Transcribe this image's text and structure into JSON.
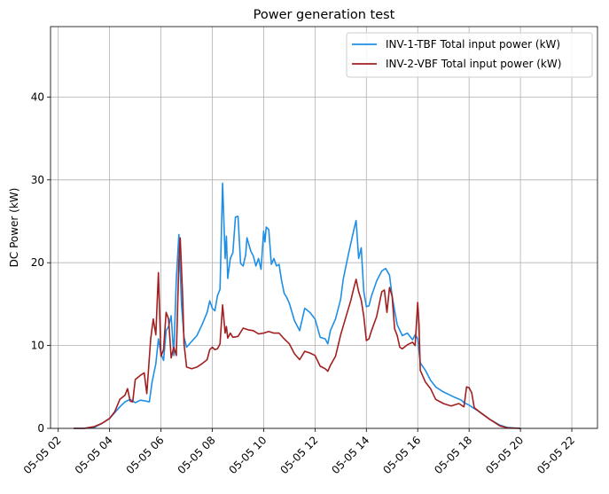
{
  "chart_data": {
    "type": "line",
    "title": "Power generation test",
    "xlabel": "",
    "ylabel": "DC Power (kW)",
    "x_unit": "hours (2024-05-05 local time)",
    "xlim": [
      1.7,
      23.0
    ],
    "ylim": [
      0,
      48.5
    ],
    "grid": true,
    "legend_position": "top-right",
    "x_ticks": [
      {
        "value": 2,
        "label": "05-05 02"
      },
      {
        "value": 4,
        "label": "05-05 04"
      },
      {
        "value": 6,
        "label": "05-05 06"
      },
      {
        "value": 8,
        "label": "05-05 08"
      },
      {
        "value": 10,
        "label": "05-05 10"
      },
      {
        "value": 12,
        "label": "05-05 12"
      },
      {
        "value": 14,
        "label": "05-05 14"
      },
      {
        "value": 16,
        "label": "05-05 16"
      },
      {
        "value": 18,
        "label": "05-05 18"
      },
      {
        "value": 20,
        "label": "05-05 20"
      },
      {
        "value": 22,
        "label": "05-05 22"
      }
    ],
    "y_ticks": [
      {
        "value": 0,
        "label": "0"
      },
      {
        "value": 10,
        "label": "10"
      },
      {
        "value": 20,
        "label": "20"
      },
      {
        "value": 30,
        "label": "30"
      },
      {
        "value": 40,
        "label": "40"
      }
    ],
    "series": [
      {
        "name": "INV-1-TBF Total input power (kW)",
        "color": "#1f8fe5",
        "points": [
          [
            2.6,
            0
          ],
          [
            3.0,
            0
          ],
          [
            3.4,
            0.1
          ],
          [
            3.7,
            0.6
          ],
          [
            4.0,
            1.2
          ],
          [
            4.2,
            1.9
          ],
          [
            4.4,
            2.6
          ],
          [
            4.6,
            3.2
          ],
          [
            4.8,
            3.5
          ],
          [
            5.0,
            3.1
          ],
          [
            5.2,
            3.4
          ],
          [
            5.4,
            3.3
          ],
          [
            5.55,
            3.2
          ],
          [
            5.65,
            5.5
          ],
          [
            5.8,
            7.8
          ],
          [
            5.9,
            10.8
          ],
          [
            6.0,
            9.0
          ],
          [
            6.1,
            8.2
          ],
          [
            6.2,
            11.8
          ],
          [
            6.3,
            12.3
          ],
          [
            6.4,
            13.6
          ],
          [
            6.5,
            8.8
          ],
          [
            6.6,
            18.0
          ],
          [
            6.7,
            23.4
          ],
          [
            6.8,
            15.0
          ],
          [
            6.9,
            11.0
          ],
          [
            7.0,
            9.8
          ],
          [
            7.2,
            10.5
          ],
          [
            7.4,
            11.2
          ],
          [
            7.6,
            12.5
          ],
          [
            7.8,
            14.0
          ],
          [
            7.9,
            15.4
          ],
          [
            8.0,
            14.5
          ],
          [
            8.1,
            14.2
          ],
          [
            8.2,
            16.0
          ],
          [
            8.3,
            16.8
          ],
          [
            8.4,
            29.6
          ],
          [
            8.5,
            20.5
          ],
          [
            8.55,
            23.2
          ],
          [
            8.6,
            18.1
          ],
          [
            8.7,
            20.5
          ],
          [
            8.8,
            21.2
          ],
          [
            8.9,
            25.5
          ],
          [
            9.0,
            25.6
          ],
          [
            9.1,
            19.9
          ],
          [
            9.2,
            19.6
          ],
          [
            9.3,
            21.0
          ],
          [
            9.35,
            23.0
          ],
          [
            9.5,
            21.4
          ],
          [
            9.6,
            20.8
          ],
          [
            9.7,
            19.6
          ],
          [
            9.8,
            20.5
          ],
          [
            9.9,
            19.2
          ],
          [
            10.0,
            23.8
          ],
          [
            10.05,
            22.5
          ],
          [
            10.1,
            24.3
          ],
          [
            10.2,
            24.0
          ],
          [
            10.3,
            19.8
          ],
          [
            10.4,
            20.5
          ],
          [
            10.5,
            19.6
          ],
          [
            10.6,
            19.8
          ],
          [
            10.7,
            17.8
          ],
          [
            10.8,
            16.3
          ],
          [
            10.9,
            15.8
          ],
          [
            11.0,
            15.1
          ],
          [
            11.2,
            13.0
          ],
          [
            11.4,
            11.8
          ],
          [
            11.6,
            14.5
          ],
          [
            11.8,
            14.0
          ],
          [
            12.0,
            13.2
          ],
          [
            12.2,
            11.0
          ],
          [
            12.4,
            10.8
          ],
          [
            12.5,
            10.2
          ],
          [
            12.6,
            11.8
          ],
          [
            12.8,
            13.2
          ],
          [
            13.0,
            15.6
          ],
          [
            13.1,
            18.0
          ],
          [
            13.3,
            21.0
          ],
          [
            13.5,
            23.8
          ],
          [
            13.6,
            25.1
          ],
          [
            13.7,
            20.5
          ],
          [
            13.8,
            21.8
          ],
          [
            13.9,
            16.5
          ],
          [
            14.0,
            14.7
          ],
          [
            14.1,
            14.8
          ],
          [
            14.2,
            16.0
          ],
          [
            14.4,
            17.8
          ],
          [
            14.6,
            19.0
          ],
          [
            14.75,
            19.3
          ],
          [
            14.9,
            18.5
          ],
          [
            15.0,
            16.0
          ],
          [
            15.1,
            14.2
          ],
          [
            15.2,
            12.5
          ],
          [
            15.4,
            11.2
          ],
          [
            15.6,
            11.5
          ],
          [
            15.8,
            10.7
          ],
          [
            15.9,
            11.3
          ],
          [
            16.0,
            10.8
          ],
          [
            16.1,
            7.9
          ],
          [
            16.3,
            7.0
          ],
          [
            16.5,
            5.8
          ],
          [
            16.7,
            5.0
          ],
          [
            17.0,
            4.4
          ],
          [
            17.4,
            3.8
          ],
          [
            17.7,
            3.4
          ],
          [
            17.8,
            3.1
          ],
          [
            18.0,
            2.8
          ],
          [
            18.4,
            2.0
          ],
          [
            18.8,
            1.1
          ],
          [
            19.2,
            0.4
          ],
          [
            19.5,
            0.1
          ],
          [
            20.0,
            0
          ]
        ]
      },
      {
        "name": "INV-2-VBF Total input power (kW)",
        "color": "#a31f1f",
        "points": [
          [
            2.6,
            0
          ],
          [
            3.0,
            0
          ],
          [
            3.4,
            0.2
          ],
          [
            3.7,
            0.6
          ],
          [
            4.0,
            1.2
          ],
          [
            4.2,
            2.0
          ],
          [
            4.4,
            3.5
          ],
          [
            4.6,
            4.0
          ],
          [
            4.7,
            4.8
          ],
          [
            4.8,
            3.3
          ],
          [
            4.9,
            3.2
          ],
          [
            5.0,
            5.9
          ],
          [
            5.2,
            6.4
          ],
          [
            5.35,
            6.7
          ],
          [
            5.45,
            4.2
          ],
          [
            5.6,
            10.8
          ],
          [
            5.7,
            13.2
          ],
          [
            5.8,
            11.3
          ],
          [
            5.9,
            18.8
          ],
          [
            6.0,
            8.7
          ],
          [
            6.1,
            9.5
          ],
          [
            6.2,
            14.0
          ],
          [
            6.3,
            13.2
          ],
          [
            6.4,
            8.5
          ],
          [
            6.5,
            9.8
          ],
          [
            6.6,
            8.8
          ],
          [
            6.7,
            20.2
          ],
          [
            6.75,
            23.0
          ],
          [
            6.85,
            15.5
          ],
          [
            6.9,
            10.2
          ],
          [
            7.0,
            7.4
          ],
          [
            7.2,
            7.2
          ],
          [
            7.4,
            7.4
          ],
          [
            7.6,
            7.8
          ],
          [
            7.8,
            8.3
          ],
          [
            7.9,
            9.5
          ],
          [
            8.0,
            9.8
          ],
          [
            8.1,
            9.5
          ],
          [
            8.2,
            9.6
          ],
          [
            8.3,
            10.2
          ],
          [
            8.4,
            14.9
          ],
          [
            8.5,
            11.5
          ],
          [
            8.55,
            12.3
          ],
          [
            8.6,
            10.9
          ],
          [
            8.7,
            11.5
          ],
          [
            8.8,
            11.0
          ],
          [
            9.0,
            11.1
          ],
          [
            9.2,
            12.1
          ],
          [
            9.4,
            11.9
          ],
          [
            9.6,
            11.8
          ],
          [
            9.8,
            11.4
          ],
          [
            10.0,
            11.5
          ],
          [
            10.2,
            11.7
          ],
          [
            10.4,
            11.5
          ],
          [
            10.6,
            11.5
          ],
          [
            10.8,
            10.8
          ],
          [
            11.0,
            10.2
          ],
          [
            11.2,
            9.0
          ],
          [
            11.4,
            8.3
          ],
          [
            11.6,
            9.3
          ],
          [
            11.8,
            9.1
          ],
          [
            12.0,
            8.8
          ],
          [
            12.2,
            7.5
          ],
          [
            12.4,
            7.2
          ],
          [
            12.5,
            6.9
          ],
          [
            12.6,
            7.6
          ],
          [
            12.8,
            8.7
          ],
          [
            13.0,
            11.3
          ],
          [
            13.2,
            13.4
          ],
          [
            13.4,
            15.5
          ],
          [
            13.5,
            16.8
          ],
          [
            13.6,
            18.0
          ],
          [
            13.7,
            16.5
          ],
          [
            13.8,
            15.5
          ],
          [
            13.9,
            13.5
          ],
          [
            14.0,
            10.6
          ],
          [
            14.1,
            10.8
          ],
          [
            14.2,
            11.8
          ],
          [
            14.4,
            13.5
          ],
          [
            14.6,
            16.5
          ],
          [
            14.7,
            16.7
          ],
          [
            14.8,
            14.0
          ],
          [
            14.9,
            17.0
          ],
          [
            15.0,
            16.0
          ],
          [
            15.1,
            12.0
          ],
          [
            15.2,
            11.2
          ],
          [
            15.3,
            9.8
          ],
          [
            15.4,
            9.6
          ],
          [
            15.6,
            10.1
          ],
          [
            15.8,
            10.4
          ],
          [
            15.9,
            10.0
          ],
          [
            16.0,
            15.2
          ],
          [
            16.05,
            12.5
          ],
          [
            16.1,
            7.0
          ],
          [
            16.3,
            5.6
          ],
          [
            16.5,
            4.8
          ],
          [
            16.7,
            3.5
          ],
          [
            17.0,
            3.0
          ],
          [
            17.3,
            2.7
          ],
          [
            17.6,
            3.0
          ],
          [
            17.8,
            2.6
          ],
          [
            17.9,
            5.0
          ],
          [
            18.0,
            4.9
          ],
          [
            18.1,
            4.3
          ],
          [
            18.2,
            2.5
          ],
          [
            18.4,
            2.0
          ],
          [
            18.8,
            1.1
          ],
          [
            19.2,
            0.3
          ],
          [
            19.5,
            0.05
          ],
          [
            20.0,
            0
          ]
        ]
      }
    ]
  }
}
